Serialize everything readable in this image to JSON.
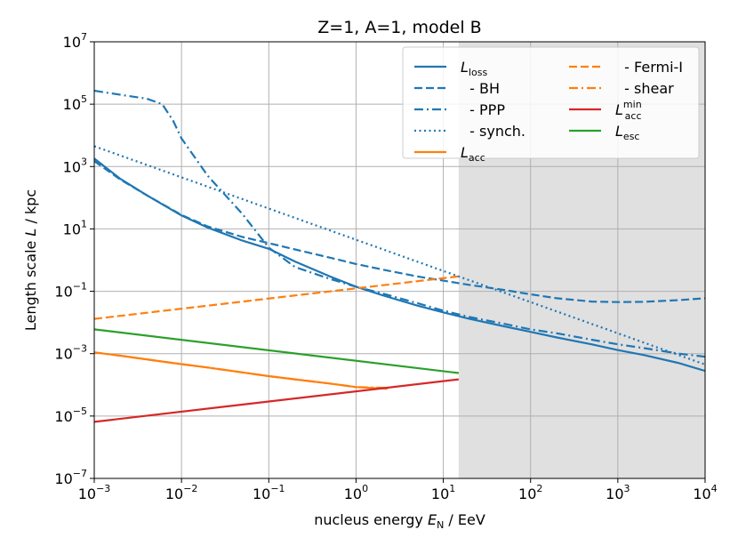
{
  "chart_data": {
    "type": "line",
    "title": "Z=1, A=1, model B",
    "xlabel": {
      "pre": "nucleus energy ",
      "var": "E",
      "sub": "N",
      "post": " / EeV"
    },
    "ylabel": {
      "pre": "Length scale ",
      "var": "L",
      "post": " / kpc"
    },
    "xscale": "log",
    "yscale": "log",
    "xlim": [
      0.001,
      10000
    ],
    "ylim": [
      1e-07,
      10000000.0
    ],
    "grid": true,
    "x_ticks": [
      {
        "base": "10",
        "exp": "−3"
      },
      {
        "base": "10",
        "exp": "−2"
      },
      {
        "base": "10",
        "exp": "−1"
      },
      {
        "base": "10",
        "exp": "0"
      },
      {
        "base": "10",
        "exp": "1"
      },
      {
        "base": "10",
        "exp": "2"
      },
      {
        "base": "10",
        "exp": "3"
      },
      {
        "base": "10",
        "exp": "4"
      }
    ],
    "y_ticks": [
      {
        "base": "10",
        "exp": "−7"
      },
      {
        "base": "10",
        "exp": "−5"
      },
      {
        "base": "10",
        "exp": "−3"
      },
      {
        "base": "10",
        "exp": "−1"
      },
      {
        "base": "10",
        "exp": "1"
      },
      {
        "base": "10",
        "exp": "3"
      },
      {
        "base": "10",
        "exp": "5"
      },
      {
        "base": "10",
        "exp": "7"
      }
    ],
    "shaded_region": {
      "x_from": 15,
      "x_to": 10000,
      "color": "#e0e0e0"
    },
    "colors": {
      "blue": "#1f77b4",
      "orange": "#ff7f0e",
      "red": "#d62728",
      "green": "#2ca02c"
    },
    "legend": {
      "position": "upper right",
      "entries": [
        {
          "key": "loss",
          "main": "L",
          "sub": "loss",
          "style": "solid",
          "color": "#1f77b4"
        },
        {
          "key": "bh",
          "text": "  - BH",
          "style": "dashed",
          "color": "#1f77b4"
        },
        {
          "key": "ppp",
          "text": "  - PPP",
          "style": "dashdot",
          "color": "#1f77b4"
        },
        {
          "key": "synch",
          "text": "  - synch.",
          "style": "dotted",
          "color": "#1f77b4"
        },
        {
          "key": "acc",
          "main": "L",
          "sub": "acc",
          "style": "solid",
          "color": "#ff7f0e"
        },
        {
          "key": "fermi",
          "text": "  - Fermi-I",
          "style": "dashed",
          "color": "#ff7f0e"
        },
        {
          "key": "shear",
          "text": "  - shear",
          "style": "dashdot",
          "color": "#ff7f0e"
        },
        {
          "key": "accmin",
          "main": "L",
          "sub": "acc",
          "sup": "min",
          "style": "solid",
          "color": "#d62728"
        },
        {
          "key": "esc",
          "main": "L",
          "sub": "esc",
          "style": "solid",
          "color": "#2ca02c"
        }
      ]
    },
    "series": [
      {
        "name": "L_loss",
        "color": "#1f77b4",
        "style": "solid",
        "x": [
          0.001,
          0.002,
          0.004,
          0.01,
          0.02,
          0.05,
          0.1,
          0.2,
          0.5,
          1,
          2,
          5,
          10,
          20,
          50,
          100,
          200,
          500,
          1000,
          2000,
          5000,
          10000
        ],
        "y": [
          1800,
          400,
          120,
          27,
          11,
          4.2,
          2.3,
          0.9,
          0.3,
          0.14,
          0.075,
          0.035,
          0.021,
          0.013,
          0.0075,
          0.005,
          0.0033,
          0.002,
          0.0013,
          0.0009,
          0.0005,
          0.00028
        ]
      },
      {
        "name": "BH",
        "color": "#1f77b4",
        "style": "dashed",
        "x": [
          0.001,
          0.002,
          0.004,
          0.01,
          0.02,
          0.05,
          0.1,
          0.2,
          0.5,
          1,
          2,
          5,
          10,
          20,
          50,
          100,
          200,
          500,
          1000,
          2000,
          5000,
          10000
        ],
        "y": [
          1500,
          380,
          120,
          28,
          12,
          5.5,
          3.5,
          2.2,
          1.2,
          0.75,
          0.5,
          0.3,
          0.22,
          0.16,
          0.11,
          0.08,
          0.06,
          0.047,
          0.045,
          0.046,
          0.052,
          0.06
        ]
      },
      {
        "name": "PPP",
        "color": "#1f77b4",
        "style": "dashdot",
        "x": [
          0.001,
          0.002,
          0.004,
          0.006,
          0.008,
          0.01,
          0.02,
          0.05,
          0.1,
          0.2,
          0.5,
          1,
          2,
          5,
          10,
          20,
          50,
          100,
          200,
          500,
          1000,
          2000,
          5000,
          10000
        ],
        "y": [
          270000,
          200000,
          150000,
          100000,
          30000,
          8000,
          500,
          30,
          2.5,
          0.6,
          0.25,
          0.14,
          0.085,
          0.042,
          0.024,
          0.015,
          0.009,
          0.006,
          0.0045,
          0.0028,
          0.002,
          0.0015,
          0.001,
          0.0008
        ]
      },
      {
        "name": "synch.",
        "color": "#1f77b4",
        "style": "dotted",
        "x": [
          0.001,
          0.01,
          0.1,
          1,
          10,
          100,
          1000,
          10000
        ],
        "y": [
          4500,
          450,
          45,
          4.5,
          0.45,
          0.045,
          0.0045,
          0.00045
        ]
      },
      {
        "name": "Fermi-I",
        "color": "#ff7f0e",
        "style": "dashed",
        "x": [
          0.001,
          15
        ],
        "y": [
          0.013,
          0.3
        ]
      },
      {
        "name": "shear",
        "color": "#ff7f0e",
        "style": "dashdot",
        "x": [
          0.001,
          0.002,
          0.005,
          0.01,
          0.02,
          0.05,
          0.1,
          0.2,
          0.5,
          1,
          2.3
        ],
        "y": [
          0.0011,
          0.00086,
          0.0006,
          0.00046,
          0.00036,
          0.00025,
          0.00019,
          0.00015,
          0.00011,
          8.5e-05,
          8e-05
        ]
      },
      {
        "name": "L_acc",
        "color": "#ff7f0e",
        "style": "solid",
        "x": [
          0.001,
          0.002,
          0.005,
          0.01,
          0.02,
          0.05,
          0.1,
          0.2,
          0.5,
          1,
          2.3
        ],
        "y": [
          0.0011,
          0.00086,
          0.0006,
          0.00046,
          0.00036,
          0.00025,
          0.00019,
          0.00015,
          0.00011,
          8.5e-05,
          7.5e-05
        ]
      },
      {
        "name": "L_acc^min",
        "color": "#d62728",
        "style": "solid",
        "x": [
          0.001,
          15
        ],
        "y": [
          6.5e-06,
          0.00015
        ]
      },
      {
        "name": "L_esc",
        "color": "#2ca02c",
        "style": "solid",
        "x": [
          0.001,
          15
        ],
        "y": [
          0.006,
          0.00024
        ]
      }
    ]
  }
}
